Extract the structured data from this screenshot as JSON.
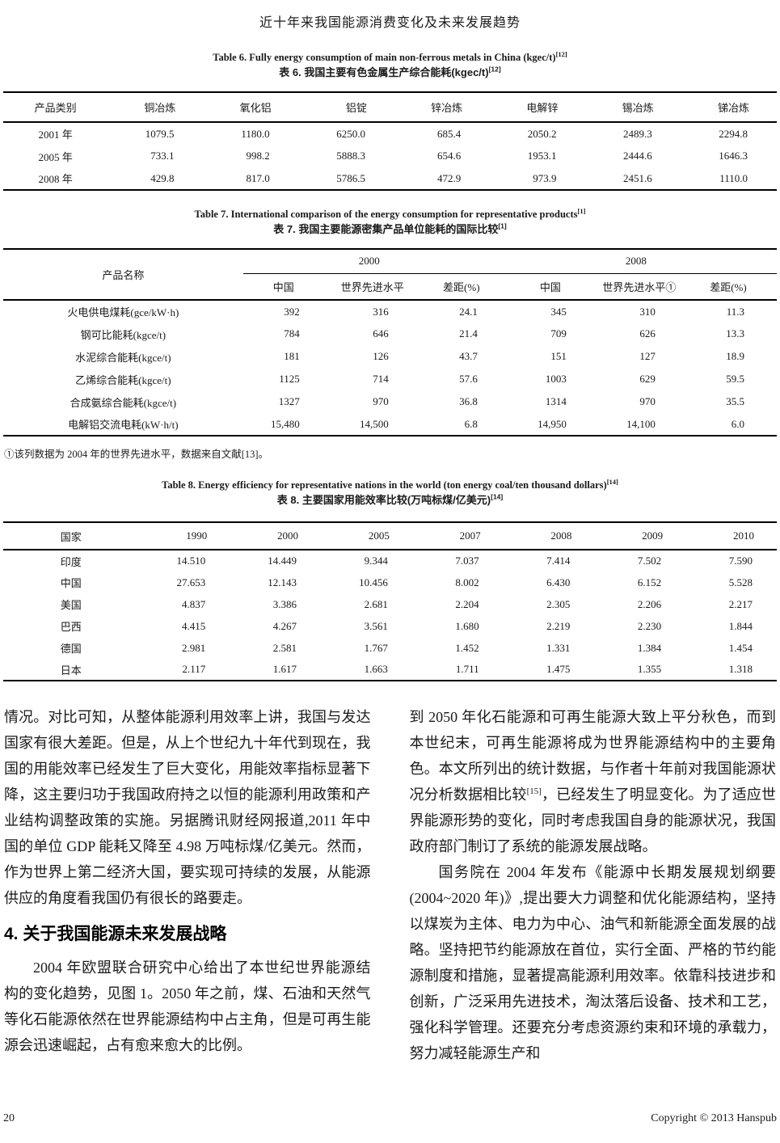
{
  "colors": {
    "text": "#1a1a1a",
    "rule": "#000000",
    "background": "#ffffff"
  },
  "page": {
    "header_title": "近十年来我国能源消费变化及未来发展趋势",
    "footer": {
      "page_number": "20",
      "copyright": "Copyright © 2013 Hanspub"
    }
  },
  "table6": {
    "caption_en": "Table 6. Fully energy consumption of main non-ferrous metals in China (kgec/t)",
    "caption_en_sup": "[12]",
    "caption_zh": "表 6. 我国主要有色金属生产综合能耗(kgec/t)",
    "caption_zh_sup": "[12]",
    "headers": [
      "产品类别",
      "铜冶炼",
      "氧化铝",
      "铝锭",
      "锌冶炼",
      "电解锌",
      "锡冶炼",
      "锑冶炼"
    ],
    "rows": [
      [
        "2001 年",
        "1079.5",
        "1180.0",
        "6250.0",
        "685.4",
        "2050.2",
        "2489.3",
        "2294.8"
      ],
      [
        "2005 年",
        "733.1",
        "998.2",
        "5888.3",
        "654.6",
        "1953.1",
        "2444.6",
        "1646.3"
      ],
      [
        "2008 年",
        "429.8",
        "817.0",
        "5786.5",
        "472.9",
        "973.9",
        "2451.6",
        "1110.0"
      ]
    ]
  },
  "table7": {
    "caption_en": "Table 7. International comparison of the energy consumption for representative products",
    "caption_en_sup": "[1]",
    "caption_zh": "表 7. 我国主要能源密集产品单位能耗的国际比较",
    "caption_zh_sup": "[1]",
    "product_header": "产品名称",
    "group_headers": [
      "2000",
      "2008"
    ],
    "sub_headers": [
      "中国",
      "世界先进水平",
      "差距(%)",
      "中国",
      "世界先进水平①",
      "差距(%)"
    ],
    "rows": [
      [
        "火电供电煤耗(gce/kW·h)",
        "392",
        "316",
        "24.1",
        "345",
        "310",
        "11.3"
      ],
      [
        "钢可比能耗(kgce/t)",
        "784",
        "646",
        "21.4",
        "709",
        "626",
        "13.3"
      ],
      [
        "水泥综合能耗(kgce/t)",
        "181",
        "126",
        "43.7",
        "151",
        "127",
        "18.9"
      ],
      [
        "乙烯综合能耗(kgce/t)",
        "1125",
        "714",
        "57.6",
        "1003",
        "629",
        "59.5"
      ],
      [
        "合成氨综合能耗(kgce/t)",
        "1327",
        "970",
        "36.8",
        "1314",
        "970",
        "35.5"
      ],
      [
        "电解铝交流电耗(kW·h/t)",
        "15,480",
        "14,500",
        "6.8",
        "14,950",
        "14,100",
        "6.0"
      ]
    ],
    "footnote": "①该列数据为 2004 年的世界先进水平，数据来自文献[13]。"
  },
  "table8": {
    "caption_en": "Table 8. Energy efficiency for representative nations in the world (ton energy coal/ten thousand dollars)",
    "caption_en_sup": "[14]",
    "caption_zh": "表 8. 主要国家用能效率比较(万吨标煤/亿美元)",
    "caption_zh_sup": "[14]",
    "headers": [
      "国家",
      "1990",
      "2000",
      "2005",
      "2007",
      "2008",
      "2009",
      "2010"
    ],
    "rows": [
      [
        "印度",
        "14.510",
        "14.449",
        "9.344",
        "7.037",
        "7.414",
        "7.502",
        "7.590"
      ],
      [
        "中国",
        "27.653",
        "12.143",
        "10.456",
        "8.002",
        "6.430",
        "6.152",
        "5.528"
      ],
      [
        "美国",
        "4.837",
        "3.386",
        "2.681",
        "2.204",
        "2.305",
        "2.206",
        "2.217"
      ],
      [
        "巴西",
        "4.415",
        "4.267",
        "3.561",
        "1.680",
        "2.219",
        "2.230",
        "1.844"
      ],
      [
        "德国",
        "2.981",
        "2.581",
        "1.767",
        "1.452",
        "1.331",
        "1.384",
        "1.454"
      ],
      [
        "日本",
        "2.117",
        "1.617",
        "1.663",
        "1.711",
        "1.475",
        "1.355",
        "1.318"
      ]
    ]
  },
  "body": {
    "left": {
      "para1": "情况。对比可知，从整体能源利用效率上讲，我国与发达国家有很大差距。但是，从上个世纪九十年代到现在，我国的用能效率已经发生了巨大变化，用能效率指标显著下降，这主要归功于我国政府持之以恒的能源利用政策和产业结构调整政策的实施。另据腾讯财经网报道,2011 年中国的单位 GDP 能耗又降至 4.98 万吨标煤/亿美元。然而，作为世界上第二经济大国，要实现可持续的发展，从能源供应的角度看我国仍有很长的路要走。",
      "section_heading": "4. 关于我国能源未来发展战略",
      "para2": "2004 年欧盟联合研究中心给出了本世纪世界能源结构的变化趋势，见图 1。2050 年之前，煤、石油和天然气等化石能源依然在世界能源结构中占主角，但是可再生能源会迅速崛起，占有愈来愈大的比例。"
    },
    "right": {
      "para1a": "到 2050 年化石能源和可再生能源大致上平分秋色，而到本世纪末，可再生能源将成为世界能源结构中的主要角色。本文所列出的统计数据，与作者十年前对我国能源状况分析数据相比较",
      "para1_sup": "[15]",
      "para1b": "，已经发生了明显变化。为了适应世界能源形势的变化，同时考虑我国自身的能源状况，我国政府部门制订了系统的能源发展战略。",
      "para2": "国务院在 2004 年发布《能源中长期发展规划纲要(2004~2020 年)》,提出要大力调整和优化能源结构，坚持以煤炭为主体、电力为中心、油气和新能源全面发展的战略。坚持把节约能源放在首位，实行全面、严格的节约能源制度和措施，显著提高能源利用效率。依靠科技进步和创新，广泛采用先进技术，淘汰落后设备、技术和工艺，强化科学管理。还要充分考虑资源约束和环境的承载力，努力减轻能源生产和"
    }
  }
}
